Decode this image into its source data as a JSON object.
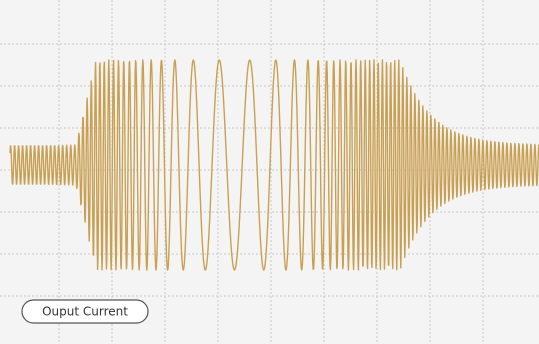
{
  "label": "Ouput Current"
}
